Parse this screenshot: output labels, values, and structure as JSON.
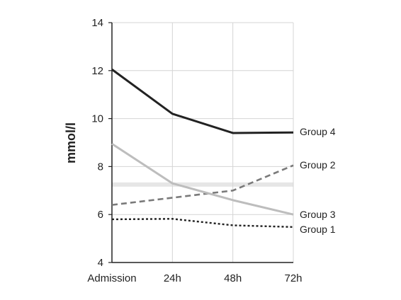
{
  "chart_data": {
    "type": "line",
    "title": "",
    "xlabel": "",
    "ylabel": "mmol/l",
    "ylim": [
      4,
      14
    ],
    "yticks": [
      4,
      6,
      8,
      10,
      12,
      14
    ],
    "categories": [
      "Admission",
      "24h",
      "48h",
      "72h"
    ],
    "grid": true,
    "legend": "labels at line ends (right)",
    "reference_band": {
      "value": 7.25,
      "color": "#e6e6e6"
    },
    "series": [
      {
        "name": "Group 4",
        "values": [
          12.05,
          10.2,
          9.4,
          9.42
        ],
        "color": "#222222",
        "style": "solid"
      },
      {
        "name": "Group 2",
        "values": [
          6.4,
          6.7,
          7.0,
          8.05
        ],
        "color": "#7a7a7a",
        "style": "dashed"
      },
      {
        "name": "Group 3",
        "values": [
          8.95,
          7.3,
          6.6,
          6.0
        ],
        "color": "#bdbdbd",
        "style": "solid"
      },
      {
        "name": "Group 1",
        "values": [
          5.8,
          5.82,
          5.55,
          5.48
        ],
        "color": "#222222",
        "style": "dotted"
      }
    ]
  }
}
